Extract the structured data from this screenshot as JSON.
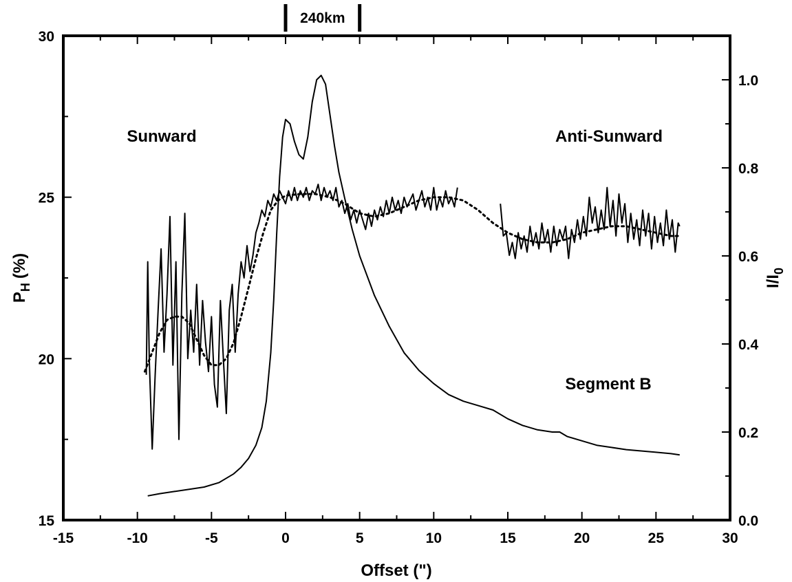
{
  "chart_data": {
    "type": "line",
    "xlabel": "Offset (\")",
    "ylabel_left_main": "P",
    "ylabel_left_sub": "H",
    "ylabel_left_unit": "(%)",
    "ylabel_right_main": "I/I",
    "ylabel_right_sub": "0",
    "xlim": [
      -15,
      30
    ],
    "ylim_left": [
      15,
      30
    ],
    "ylim_right": [
      0.0,
      1.1
    ],
    "x_ticks": [
      "-15",
      "-10",
      "-5",
      "0",
      "5",
      "10",
      "15",
      "20",
      "25",
      "30"
    ],
    "y_left_ticks": [
      "15",
      "20",
      "25",
      "30"
    ],
    "y_right_ticks": [
      "0.0",
      "0.2",
      "0.4",
      "0.6",
      "0.8",
      "1.0"
    ],
    "annotations": {
      "sunward": "Sunward",
      "anti_sunward": "Anti-Sunward",
      "segment": "Segment B",
      "scale_bar": "240km"
    },
    "scale_bar_range": [
      0,
      5
    ],
    "series": [
      {
        "axis": "right",
        "style": "solid",
        "x": [
          -9.3,
          -8.5,
          -7.5,
          -6.5,
          -5.5,
          -4.5,
          -4.0,
          -3.5,
          -3.0,
          -2.5,
          -2.0,
          -1.6,
          -1.3,
          -1.0,
          -0.8,
          -0.6,
          -0.4,
          -0.2,
          0.0,
          0.3,
          0.6,
          0.9,
          1.2,
          1.5,
          1.8,
          2.1,
          2.4,
          2.7,
          3.0,
          3.3,
          3.6,
          4.0,
          4.5,
          5.0,
          6.0,
          7.0,
          8.0,
          9.0,
          10.0,
          11.0,
          12.0,
          13.0,
          14.0,
          15.0,
          16.0,
          17.0,
          18.0,
          18.5,
          19.0,
          20.0,
          21.0,
          22.0,
          23.0,
          24.0,
          25.0,
          26.0,
          26.6
        ],
        "values": [
          0.055,
          0.06,
          0.065,
          0.07,
          0.075,
          0.085,
          0.095,
          0.105,
          0.12,
          0.14,
          0.17,
          0.21,
          0.27,
          0.38,
          0.5,
          0.65,
          0.78,
          0.87,
          0.91,
          0.9,
          0.86,
          0.83,
          0.82,
          0.87,
          0.95,
          1.0,
          1.01,
          0.99,
          0.92,
          0.85,
          0.79,
          0.73,
          0.66,
          0.6,
          0.51,
          0.44,
          0.38,
          0.34,
          0.31,
          0.285,
          0.27,
          0.26,
          0.25,
          0.23,
          0.215,
          0.205,
          0.2,
          0.2,
          0.19,
          0.18,
          0.17,
          0.165,
          0.16,
          0.157,
          0.154,
          0.151,
          0.148
        ]
      },
      {
        "axis": "left",
        "style": "dotted",
        "x": [
          -9.5,
          -9,
          -8.5,
          -8,
          -7.5,
          -7,
          -6.5,
          -6,
          -5.5,
          -5,
          -4.5,
          -4,
          -3.5,
          -3,
          -2.5,
          -2,
          -1.5,
          -1,
          -0.5,
          0,
          1,
          2,
          3,
          4,
          5,
          6,
          7,
          8,
          9,
          10,
          11,
          12,
          13,
          14,
          15,
          16,
          17,
          18,
          19,
          20,
          21,
          22,
          23,
          24,
          25,
          26,
          26.6
        ],
        "values": [
          19.6,
          20.2,
          20.8,
          21.2,
          21.3,
          21.3,
          21.1,
          20.6,
          20.1,
          19.8,
          19.8,
          20.0,
          20.5,
          21.3,
          22.2,
          23.1,
          23.9,
          24.6,
          24.9,
          25.05,
          25.1,
          25.1,
          25.0,
          24.8,
          24.5,
          24.4,
          24.5,
          24.7,
          24.9,
          25.0,
          25.0,
          24.9,
          24.6,
          24.2,
          23.9,
          23.7,
          23.6,
          23.6,
          23.7,
          23.9,
          24.0,
          24.1,
          24.1,
          24.0,
          23.9,
          23.8,
          23.8
        ]
      },
      {
        "axis": "left",
        "style": "solid",
        "segments": [
          {
            "x": [
              -9.4,
              -9.3,
              -9.2,
              -9.0,
              -8.8,
              -8.6,
              -8.4,
              -8.2,
              -8.0,
              -7.8,
              -7.6,
              -7.4,
              -7.2,
              -7.0,
              -6.8,
              -6.6,
              -6.4,
              -6.2,
              -6.0,
              -5.8,
              -5.6,
              -5.4,
              -5.2,
              -5.0,
              -4.8,
              -4.6,
              -4.4,
              -4.2,
              -4.0,
              -3.8,
              -3.6,
              -3.4,
              -3.2,
              -3.0,
              -2.8,
              -2.6,
              -2.4,
              -2.2,
              -2.0,
              -1.8,
              -1.6,
              -1.4,
              -1.2,
              -1.0,
              -0.8,
              -0.6,
              -0.4,
              -0.2,
              0.0,
              0.2,
              0.4,
              0.6,
              0.8,
              1.0,
              1.2,
              1.4,
              1.6,
              1.8,
              2.0,
              2.2,
              2.4,
              2.6,
              2.8,
              3.0,
              3.2,
              3.4,
              3.6,
              3.8,
              4.0,
              4.2,
              4.4,
              4.6,
              4.8,
              5.0,
              5.2,
              5.4,
              5.6,
              5.8,
              6.0,
              6.2,
              6.4,
              6.6,
              6.8,
              7.0,
              7.2,
              7.4,
              7.6,
              7.8,
              8.0,
              8.2,
              8.4,
              8.6,
              8.8,
              9.0,
              9.2,
              9.4,
              9.6,
              9.8,
              10.0,
              10.2,
              10.4,
              10.6,
              10.8,
              11.0,
              11.2,
              11.4,
              11.6
            ],
            "values": [
              19.5,
              23.0,
              20.0,
              17.2,
              19.5,
              21.5,
              23.4,
              20.2,
              22.0,
              24.4,
              19.8,
              23.0,
              17.5,
              22.0,
              24.5,
              20.0,
              21.5,
              20.2,
              22.3,
              19.8,
              21.8,
              20.5,
              19.6,
              21.3,
              19.2,
              18.5,
              21.8,
              20.0,
              18.3,
              21.5,
              22.3,
              20.2,
              22.0,
              23.0,
              22.5,
              23.5,
              22.7,
              23.2,
              23.9,
              24.2,
              24.6,
              24.4,
              24.9,
              24.7,
              25.1,
              24.9,
              25.2,
              25.0,
              24.8,
              25.2,
              24.9,
              25.3,
              24.9,
              25.2,
              25.0,
              25.3,
              24.9,
              25.2,
              25.1,
              25.4,
              24.9,
              25.3,
              25.0,
              25.2,
              24.9,
              25.3,
              24.7,
              24.9,
              24.5,
              24.8,
              24.3,
              24.6,
              24.2,
              24.6,
              24.3,
              24.0,
              24.5,
              24.1,
              24.6,
              24.3,
              24.7,
              24.4,
              24.9,
              24.5,
              25.0,
              24.6,
              24.9,
              24.5,
              25.0,
              24.7,
              24.9,
              25.1,
              24.6,
              24.9,
              25.2,
              24.7,
              25.0,
              24.6,
              25.3,
              24.6,
              25.0,
              24.7,
              25.2,
              24.8,
              25.0,
              24.7,
              25.3
            ]
          },
          {
            "x": [
              14.5,
              14.7,
              14.9,
              15.1,
              15.3,
              15.5,
              15.7,
              15.9,
              16.1,
              16.3,
              16.5,
              16.7,
              16.9,
              17.1,
              17.3,
              17.5,
              17.7,
              17.9,
              18.1,
              18.3,
              18.5,
              18.7,
              18.9,
              19.1,
              19.3,
              19.5,
              19.7,
              19.9,
              20.1,
              20.3,
              20.5,
              20.7,
              20.9,
              21.1,
              21.3,
              21.5,
              21.7,
              21.9,
              22.1,
              22.3,
              22.5,
              22.7,
              22.9,
              23.1,
              23.3,
              23.5,
              23.7,
              23.9,
              24.1,
              24.3,
              24.5,
              24.7,
              24.9,
              25.1,
              25.3,
              25.5,
              25.7,
              25.9,
              26.1,
              26.3,
              26.5,
              26.6
            ],
            "values": [
              24.8,
              23.8,
              23.9,
              23.2,
              23.6,
              23.1,
              23.9,
              23.4,
              23.8,
              23.3,
              24.1,
              23.5,
              23.9,
              23.4,
              24.2,
              23.6,
              24.0,
              23.3,
              24.1,
              23.5,
              24.0,
              23.7,
              24.1,
              23.1,
              24.0,
              23.6,
              24.3,
              23.7,
              24.4,
              23.8,
              25.0,
              24.2,
              24.7,
              23.9,
              24.6,
              24.0,
              25.3,
              24.1,
              24.9,
              23.8,
              25.1,
              24.2,
              24.8,
              23.6,
              24.5,
              23.7,
              24.3,
              23.5,
              24.6,
              23.8,
              24.5,
              23.4,
              24.4,
              23.6,
              24.2,
              23.5,
              24.6,
              23.7,
              24.3,
              23.3,
              24.2,
              24.1
            ]
          }
        ]
      }
    ]
  }
}
